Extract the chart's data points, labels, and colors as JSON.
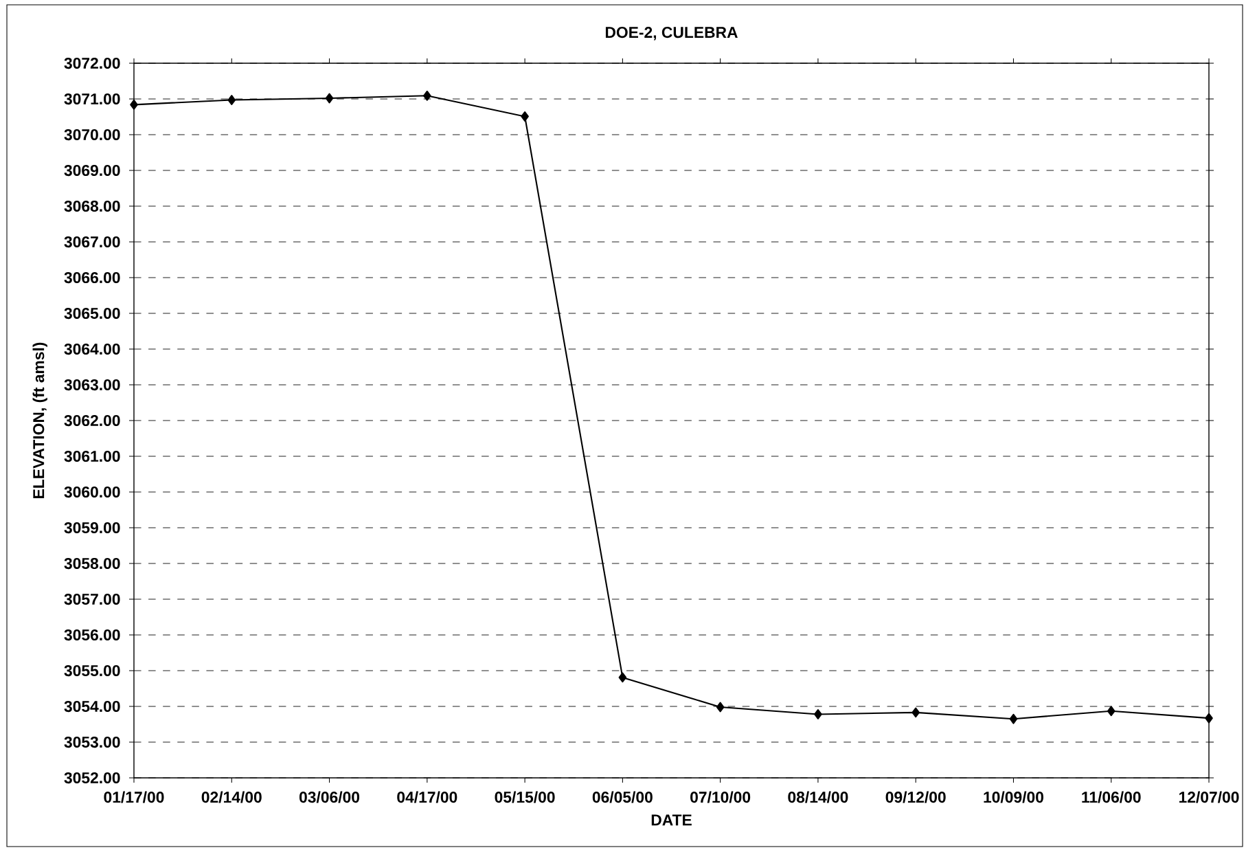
{
  "chart_data": {
    "type": "line",
    "title": "DOE-2, CULEBRA",
    "xlabel": "DATE",
    "ylabel": "ELEVATION, (ft amsl)",
    "categories": [
      "01/17/00",
      "02/14/00",
      "03/06/00",
      "04/17/00",
      "05/15/00",
      "06/05/00",
      "07/10/00",
      "08/14/00",
      "09/12/00",
      "10/09/00",
      "11/06/00",
      "12/07/00"
    ],
    "values": [
      3070.84,
      3070.97,
      3071.02,
      3071.09,
      3070.51,
      3054.81,
      3053.98,
      3053.78,
      3053.83,
      3053.65,
      3053.87,
      3053.67
    ],
    "color": "#000000",
    "marker": "diamond",
    "line_style": "solid",
    "grid": "y",
    "ylim": [
      3052,
      3072
    ],
    "yticks": [
      {
        "value": 3052,
        "label": "3052.00"
      },
      {
        "value": 3053,
        "label": "3053.00"
      },
      {
        "value": 3054,
        "label": "3054.00"
      },
      {
        "value": 3055,
        "label": "3055.00"
      },
      {
        "value": 3056,
        "label": "3056.00"
      },
      {
        "value": 3057,
        "label": "3057.00"
      },
      {
        "value": 3058,
        "label": "3058.00"
      },
      {
        "value": 3059,
        "label": "3059.00"
      },
      {
        "value": 3060,
        "label": "3060.00"
      },
      {
        "value": 3061,
        "label": "3061.00"
      },
      {
        "value": 3062,
        "label": "3062.00"
      },
      {
        "value": 3063,
        "label": "3063.00"
      },
      {
        "value": 3064,
        "label": "3064.00"
      },
      {
        "value": 3065,
        "label": "3065.00"
      },
      {
        "value": 3066,
        "label": "3066.00"
      },
      {
        "value": 3067,
        "label": "3067.00"
      },
      {
        "value": 3068,
        "label": "3068.00"
      },
      {
        "value": 3069,
        "label": "3069.00"
      },
      {
        "value": 3070,
        "label": "3070.00"
      },
      {
        "value": 3071,
        "label": "3071.00"
      },
      {
        "value": 3072,
        "label": "3072.00"
      }
    ]
  }
}
